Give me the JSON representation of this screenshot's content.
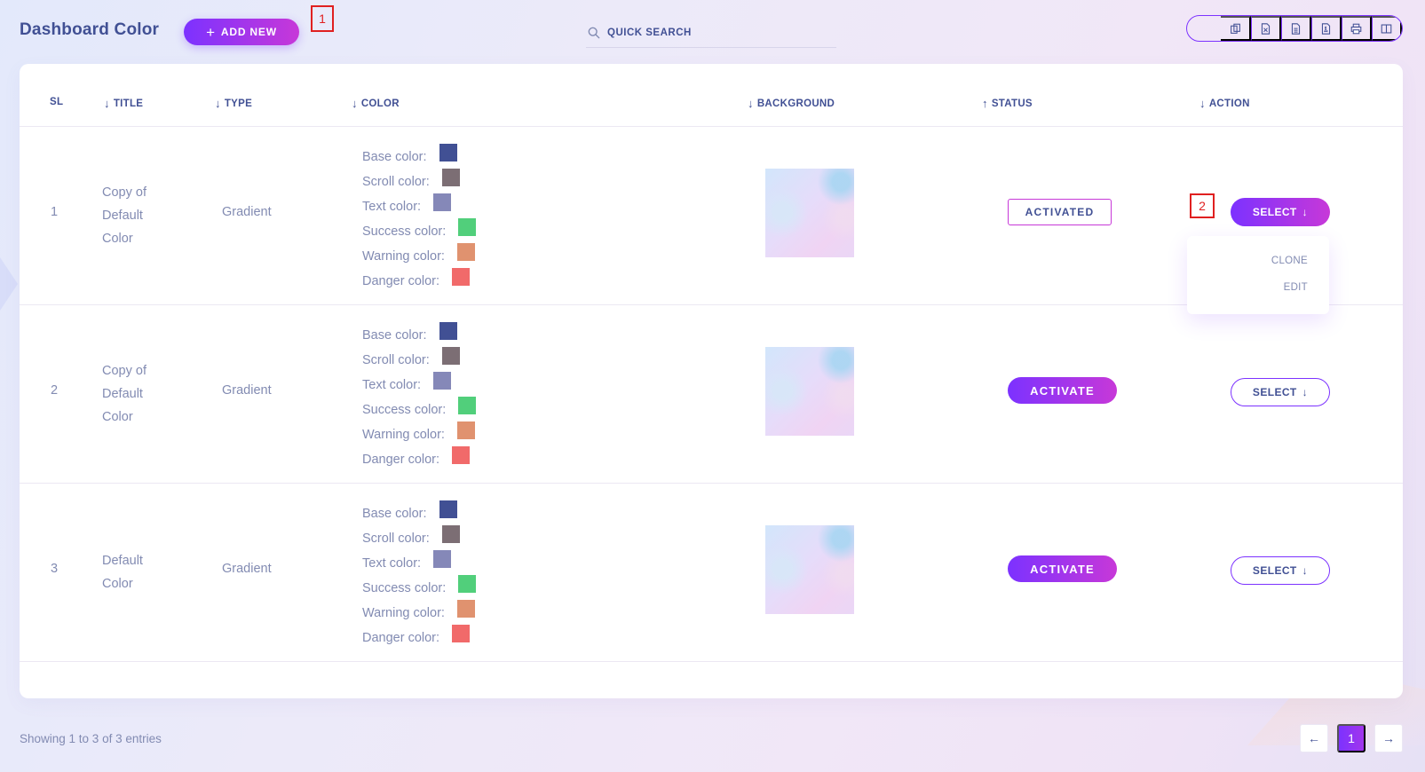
{
  "header": {
    "title": "Dashboard Color",
    "add_new_label": "ADD NEW",
    "search_label": "QUICK SEARCH",
    "export_buttons": [
      "copy-icon",
      "excel-icon",
      "csv-icon",
      "pdf-icon",
      "print-icon",
      "columns-icon"
    ]
  },
  "annotations": {
    "marker_1": "1",
    "marker_2": "2"
  },
  "table": {
    "columns": [
      "SL",
      "TITLE",
      "TYPE",
      "COLOR",
      "BACKGROUND",
      "STATUS",
      "ACTION"
    ],
    "color_labels": [
      "Base color:",
      "Scroll color:",
      "Text color:",
      "Success color:",
      "Warning color:",
      "Danger color:"
    ],
    "rows": [
      {
        "sl": "1",
        "title": "Copy of Default Color",
        "type": "Gradient",
        "colors": [
          "#415094",
          "#7c6e74",
          "#8588b8",
          "#51cf7b",
          "#e0926f",
          "#f16a6a"
        ],
        "status": "ACTIVATED",
        "action": "SELECT"
      },
      {
        "sl": "2",
        "title": "Copy of Default Color",
        "type": "Gradient",
        "colors": [
          "#415094",
          "#7c6e74",
          "#8588b8",
          "#51cf7b",
          "#e0926f",
          "#f16a6a"
        ],
        "status": "ACTIVATE",
        "action": "SELECT"
      },
      {
        "sl": "3",
        "title": "Default Color",
        "type": "Gradient",
        "colors": [
          "#415094",
          "#7c6e74",
          "#8588b8",
          "#51cf7b",
          "#e0926f",
          "#f16a6a"
        ],
        "status": "ACTIVATE",
        "action": "SELECT"
      }
    ]
  },
  "dropdown": {
    "items": [
      "CLONE",
      "EDIT"
    ]
  },
  "footer": {
    "showing": "Showing 1 to 3 of 3 entries",
    "current_page": "1"
  },
  "colors": {
    "accent": "#7c32ff",
    "accent2": "#c738d8",
    "text": "#415094",
    "muted": "#828bb2"
  }
}
